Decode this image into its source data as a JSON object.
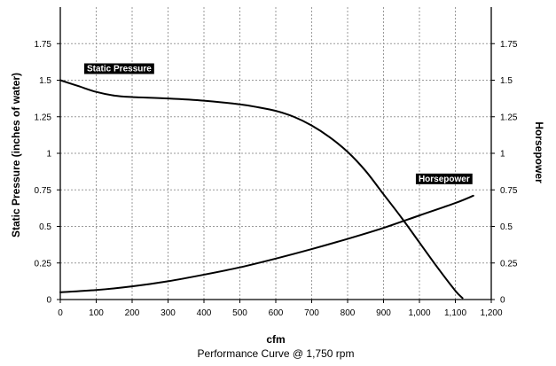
{
  "chart_data": {
    "type": "line",
    "title": "",
    "caption": "Performance Curve @ 1,750 rpm",
    "xlabel": "cfm",
    "ylabel_left": "Static Pressure (inches of water)",
    "ylabel_right": "Horsepower",
    "xlim": [
      0,
      1200
    ],
    "ylim": [
      0,
      2
    ],
    "x_ticks": [
      0,
      100,
      200,
      300,
      400,
      500,
      600,
      700,
      800,
      900,
      1000,
      1100,
      1200
    ],
    "x_tick_labels": [
      "0",
      "100",
      "200",
      "300",
      "400",
      "500",
      "600",
      "700",
      "800",
      "900",
      "1,000",
      "1,100",
      "1,200"
    ],
    "y_ticks": [
      0,
      0.25,
      0.5,
      0.75,
      1,
      1.25,
      1.5,
      1.75
    ],
    "y_tick_labels": [
      "0",
      "0.25",
      "0.5",
      "0.75",
      "1",
      "1.25",
      "1.5",
      "1.75"
    ],
    "grid": true,
    "series": [
      {
        "name": "Static Pressure",
        "color": "#000000",
        "x": [
          0,
          50,
          100,
          150,
          200,
          300,
          400,
          500,
          550,
          600,
          650,
          700,
          750,
          800,
          850,
          900,
          950,
          1000,
          1050,
          1100,
          1120
        ],
        "y": [
          1.5,
          1.46,
          1.42,
          1.395,
          1.385,
          1.375,
          1.36,
          1.335,
          1.315,
          1.29,
          1.25,
          1.19,
          1.11,
          1.01,
          0.88,
          0.72,
          0.56,
          0.39,
          0.22,
          0.06,
          0.01
        ]
      },
      {
        "name": "Horsepower",
        "color": "#000000",
        "x": [
          0,
          100,
          200,
          300,
          400,
          500,
          600,
          700,
          800,
          900,
          1000,
          1100,
          1150
        ],
        "y": [
          0.05,
          0.065,
          0.09,
          0.125,
          0.17,
          0.22,
          0.28,
          0.345,
          0.415,
          0.49,
          0.575,
          0.66,
          0.71
        ]
      }
    ]
  }
}
